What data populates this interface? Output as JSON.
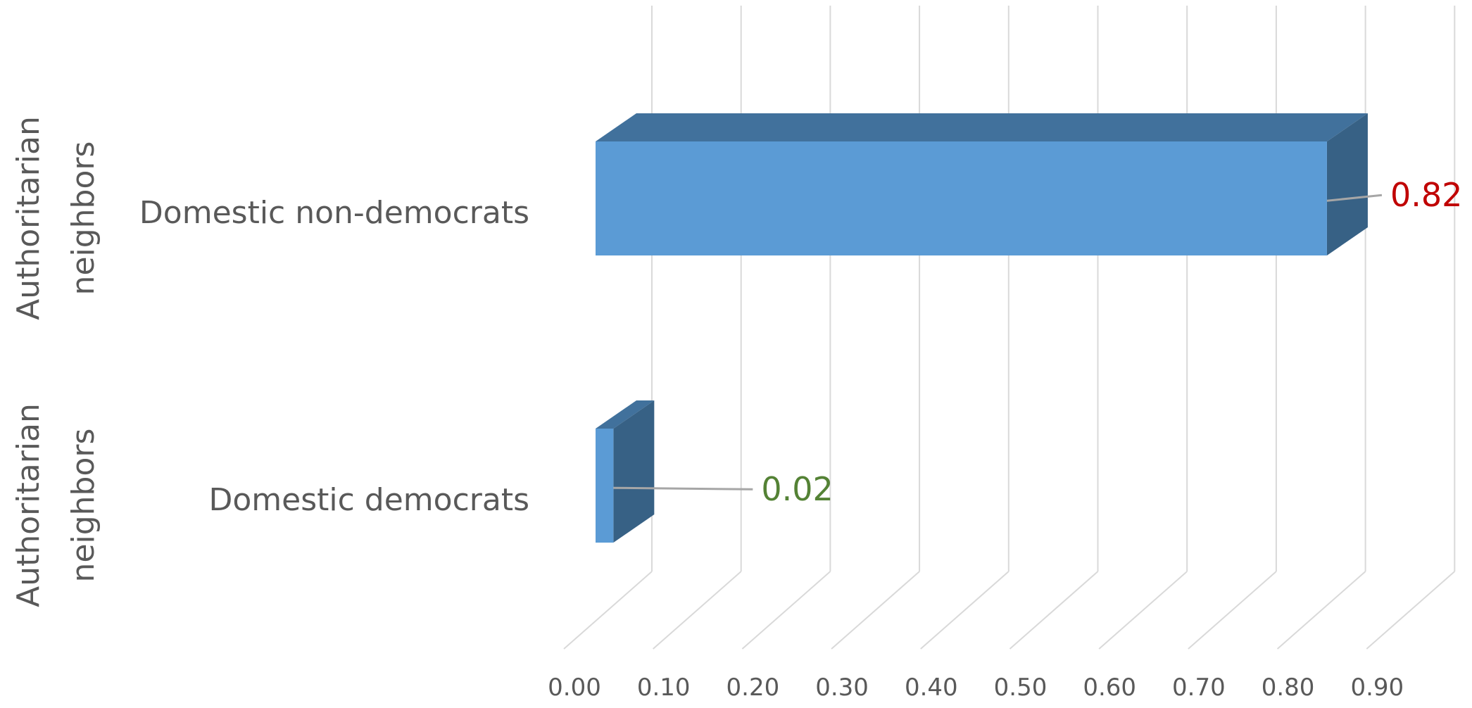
{
  "chart_data": {
    "type": "bar",
    "orientation": "horizontal",
    "style": "3d",
    "title": "",
    "xlabel": "",
    "ylabel": "",
    "xlim": [
      0,
      0.9
    ],
    "x_ticks": [
      "0.00",
      "0.10",
      "0.20",
      "0.30",
      "0.40",
      "0.50",
      "0.60",
      "0.70",
      "0.80",
      "0.90"
    ],
    "grid": true,
    "legend": "none",
    "groups": [
      "Authoritarian neighbors",
      "Authoritarian neighbors"
    ],
    "categories": [
      "Domestic non-democrats",
      "Domestic democrats"
    ],
    "values": [
      0.82,
      0.02
    ],
    "data_labels": [
      "0.82",
      "0.02"
    ],
    "colors": {
      "bar_front": "#5B9BD5",
      "bar_top": "#41719C",
      "bar_side": "#376185",
      "grid": "#D9D9D9",
      "tick_text": "#595959",
      "label_text": "#595959",
      "data_label_colors": [
        "#C00000",
        "#548235"
      ]
    }
  }
}
